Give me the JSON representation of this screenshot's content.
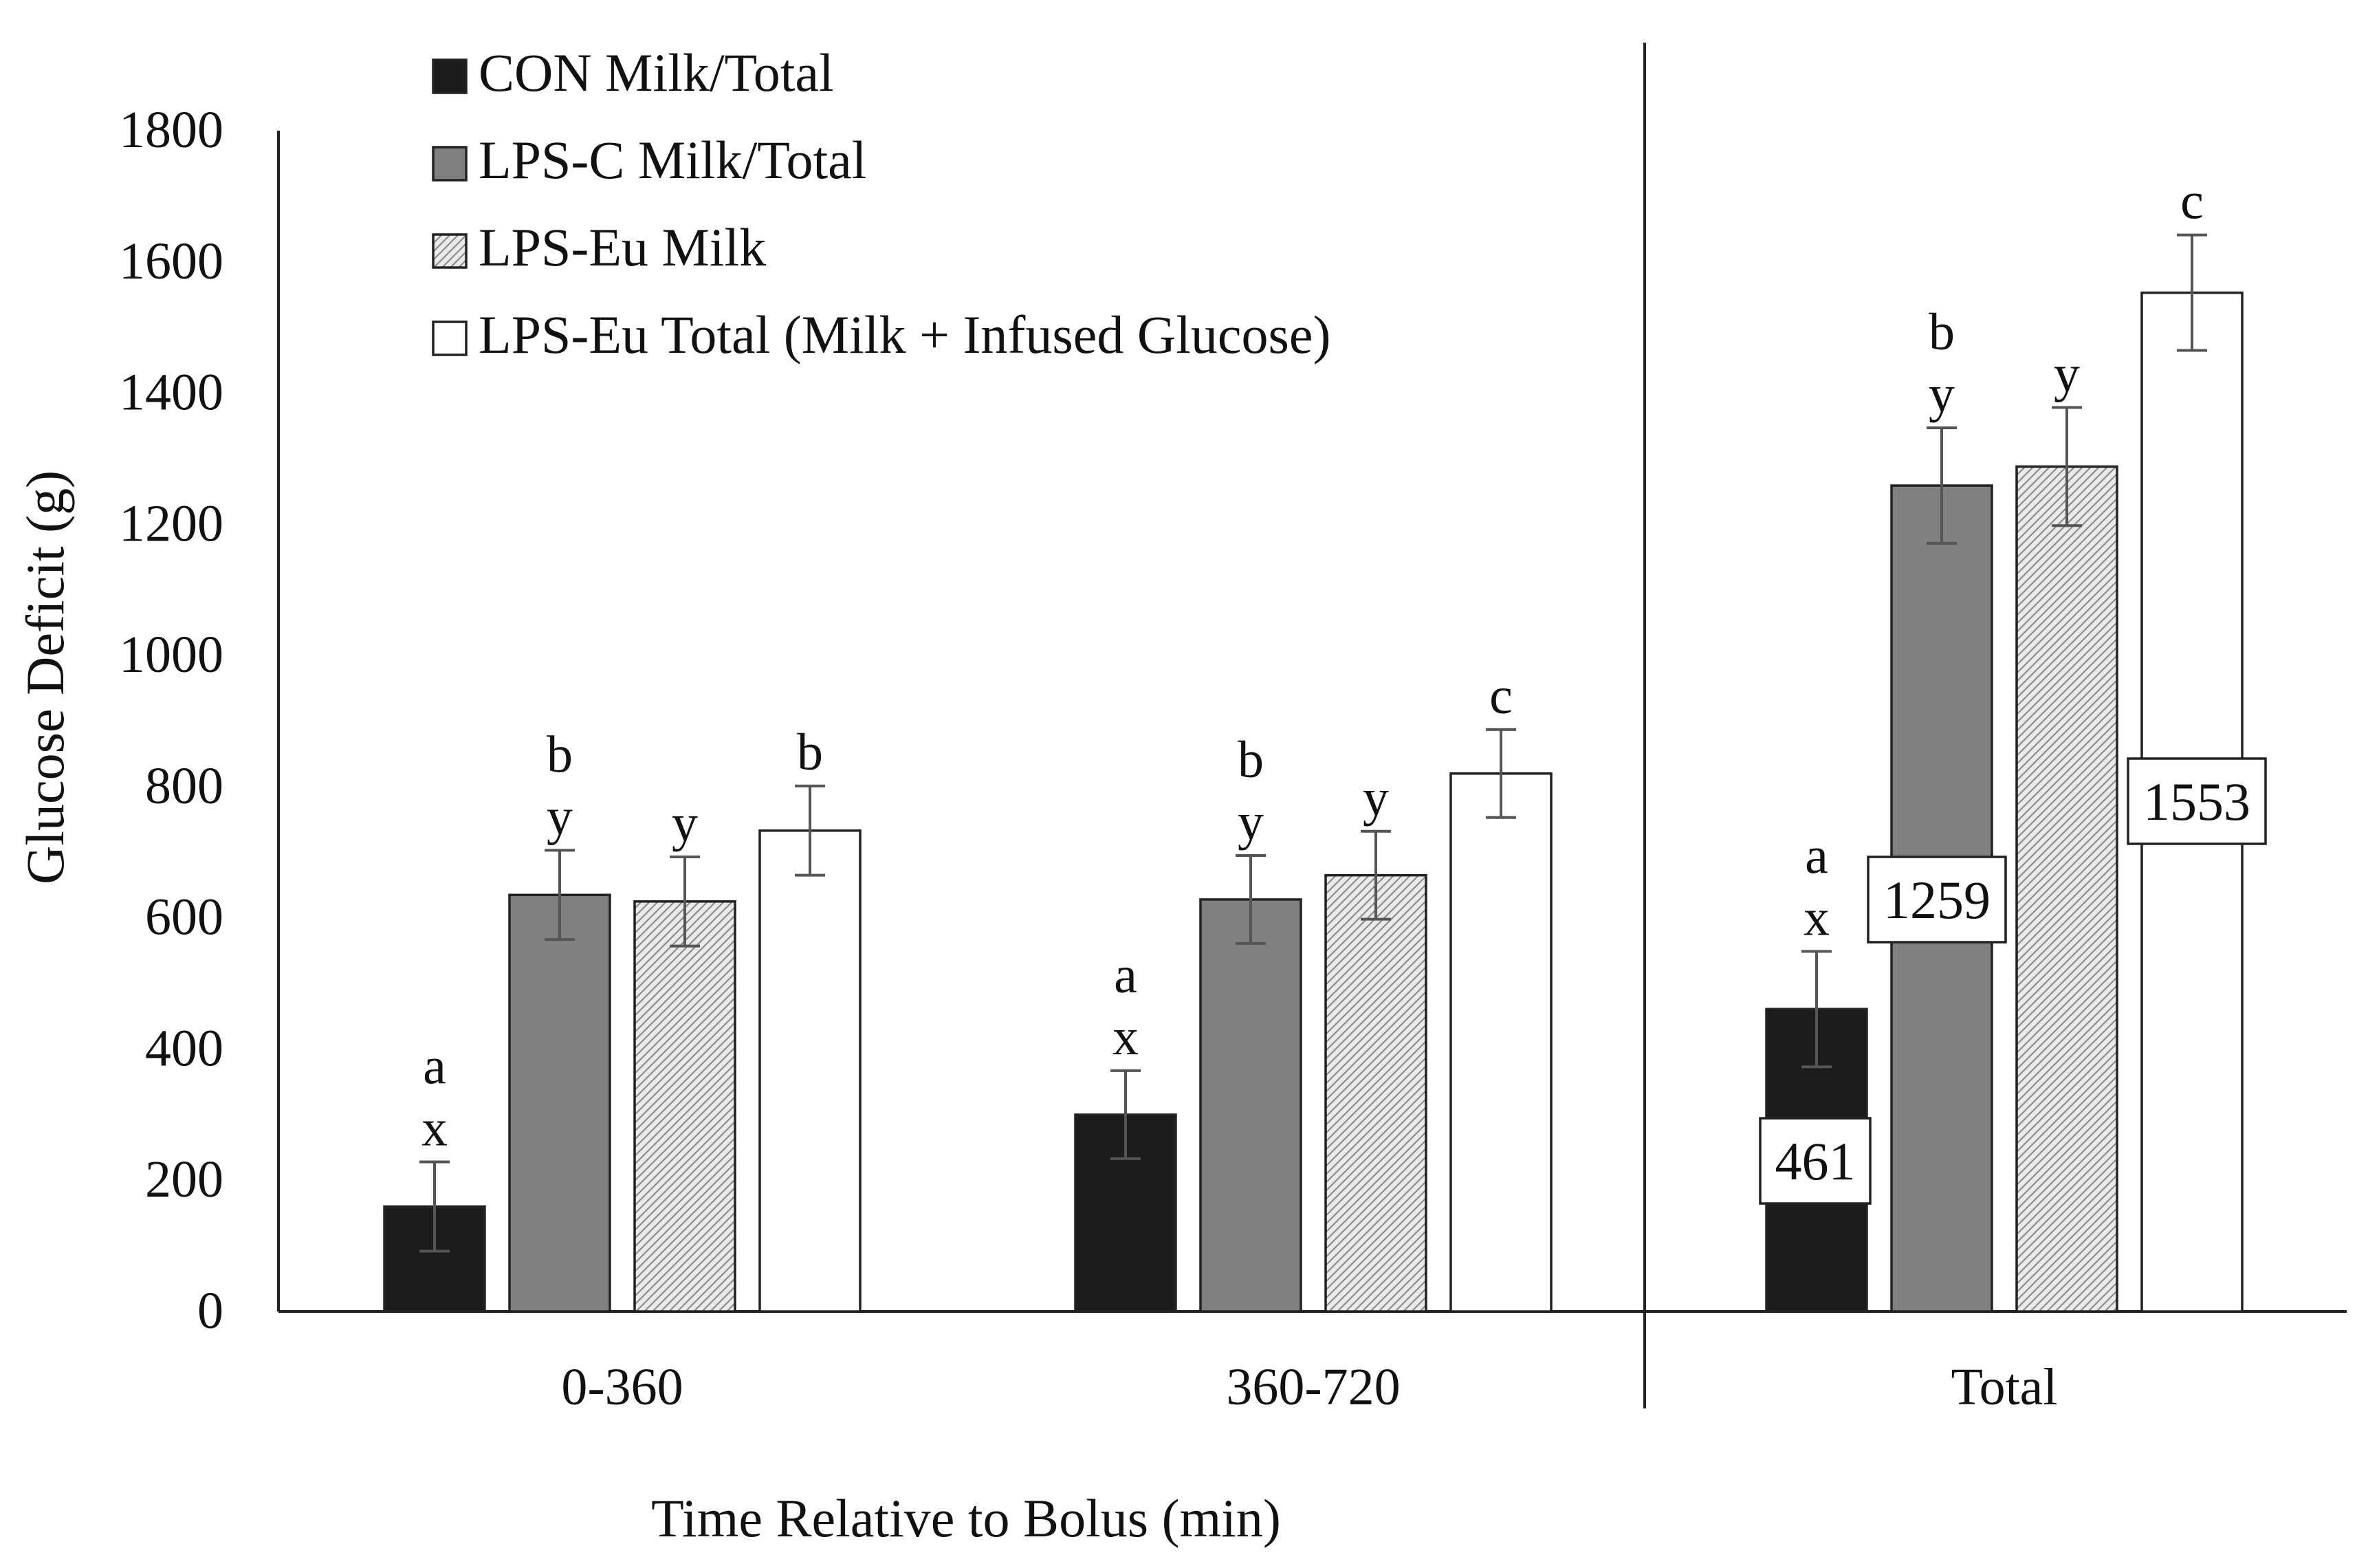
{
  "chart_data": {
    "type": "bar",
    "title": "",
    "xlabel": "Time Relative to Bolus (min)",
    "ylabel": "Glucose Deficit (g)",
    "ylim": [
      0,
      1800
    ],
    "yticks": [
      0,
      200,
      400,
      600,
      800,
      1000,
      1200,
      1400,
      1600,
      1800
    ],
    "grid": false,
    "legend_position": "top-left",
    "categories": [
      "0-360",
      "360-720",
      "Total"
    ],
    "series": [
      {
        "name": "CON Milk/Total",
        "pattern": "solid-black",
        "values": [
          160,
          300,
          461
        ],
        "errors": [
          68,
          67,
          88
        ],
        "letters": [
          [
            "a",
            "x"
          ],
          [
            "a",
            "x"
          ],
          [
            "a",
            "x"
          ]
        ]
      },
      {
        "name": "LPS-C Milk/Total",
        "pattern": "solid-gray",
        "values": [
          635,
          628,
          1259
        ],
        "errors": [
          68,
          67,
          88
        ],
        "letters": [
          [
            "b",
            "y"
          ],
          [
            "b",
            "y"
          ],
          [
            "b",
            "y"
          ]
        ]
      },
      {
        "name": "LPS-Eu Milk",
        "pattern": "hatched",
        "values": [
          625,
          665,
          1288
        ],
        "errors": [
          68,
          67,
          90
        ],
        "letters": [
          [
            "y"
          ],
          [
            "y"
          ],
          [
            "y"
          ]
        ]
      },
      {
        "name": "LPS-Eu Total (Milk + Infused Glucose)",
        "pattern": "white",
        "values": [
          733,
          820,
          1553
        ],
        "errors": [
          68,
          67,
          88
        ],
        "letters": [
          [
            "b"
          ],
          [
            "c"
          ],
          [
            "c"
          ]
        ]
      }
    ],
    "callouts": [
      {
        "series": 0,
        "category": 2,
        "text": "461"
      },
      {
        "series": 1,
        "category": 2,
        "text": "1259"
      },
      {
        "series": 3,
        "category": 2,
        "text": "1553"
      }
    ]
  },
  "colors": {
    "black_bar": "#1c1c1c",
    "gray_bar": "#808080",
    "hatch_bg": "#eaeaea",
    "hatch_line": "#8c8c8c",
    "white_bar": "#ffffff",
    "axis": "#222222",
    "error_bar": "#555555",
    "text": "#111111"
  }
}
